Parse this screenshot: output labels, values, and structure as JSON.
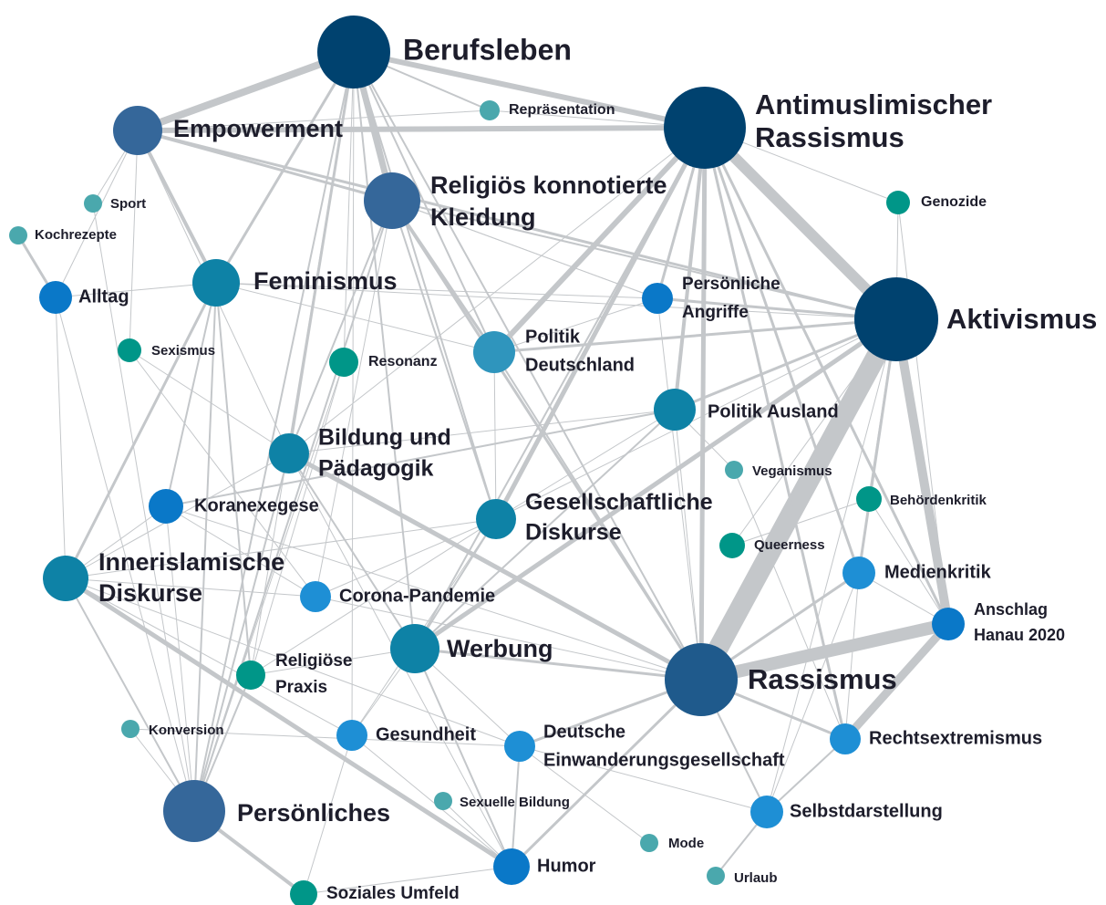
{
  "nodes": [
    {
      "label": [
        "Berufsleben"
      ]
    },
    {
      "label": [
        "Antimuslimischer",
        "Rassismus"
      ]
    },
    {
      "label": [
        "Aktivismus"
      ]
    },
    {
      "label": [
        "Rassismus"
      ]
    },
    {
      "label": [
        "Empowerment"
      ]
    },
    {
      "label": [
        "Religiös konnotierte",
        "Kleidung"
      ]
    },
    {
      "label": [
        "Persönliches"
      ]
    },
    {
      "label": [
        "Feminismus"
      ]
    },
    {
      "label": [
        "Innerislamische",
        "Diskurse"
      ]
    },
    {
      "label": [
        "Politik",
        "Deutschland"
      ]
    },
    {
      "label": [
        "Politik Ausland"
      ]
    },
    {
      "label": [
        "Bildung und",
        "Pädagogik"
      ]
    },
    {
      "label": [
        "Gesellschaftliche",
        "Diskurse"
      ]
    },
    {
      "label": [
        "Werbung"
      ]
    },
    {
      "label": [
        "Persönliche",
        "Angriffe"
      ]
    },
    {
      "label": [
        "Alltag"
      ]
    },
    {
      "label": [
        "Koranexegese"
      ]
    },
    {
      "label": [
        "Humor"
      ]
    },
    {
      "label": [
        "Anschlag",
        "Hanau 2020"
      ]
    },
    {
      "label": [
        "Corona-Pandemie"
      ]
    },
    {
      "label": [
        "Medienkritik"
      ]
    },
    {
      "label": [
        "Gesundheit"
      ]
    },
    {
      "label": [
        "Deutsche",
        "Einwanderungsgesellschaft"
      ]
    },
    {
      "label": [
        "Rechtsextremismus"
      ]
    },
    {
      "label": [
        "Selbstdarstellung"
      ]
    },
    {
      "label": [
        "Religiöse",
        "Praxis"
      ]
    },
    {
      "label": [
        "Resonanz"
      ]
    },
    {
      "label": [
        "Sexismus"
      ]
    },
    {
      "label": [
        "Genozide"
      ]
    },
    {
      "label": [
        "Behördenkritik"
      ]
    },
    {
      "label": [
        "Queerness"
      ]
    },
    {
      "label": [
        "Soziales Umfeld"
      ]
    },
    {
      "label": [
        "Repräsentation"
      ]
    },
    {
      "label": [
        "Sport"
      ]
    },
    {
      "label": [
        "Kochrezepte"
      ]
    },
    {
      "label": [
        "Veganismus"
      ]
    },
    {
      "label": [
        "Konversion"
      ]
    },
    {
      "label": [
        "Sexuelle Bildung"
      ]
    },
    {
      "label": [
        "Mode"
      ]
    },
    {
      "label": [
        "Urlaub"
      ]
    }
  ]
}
